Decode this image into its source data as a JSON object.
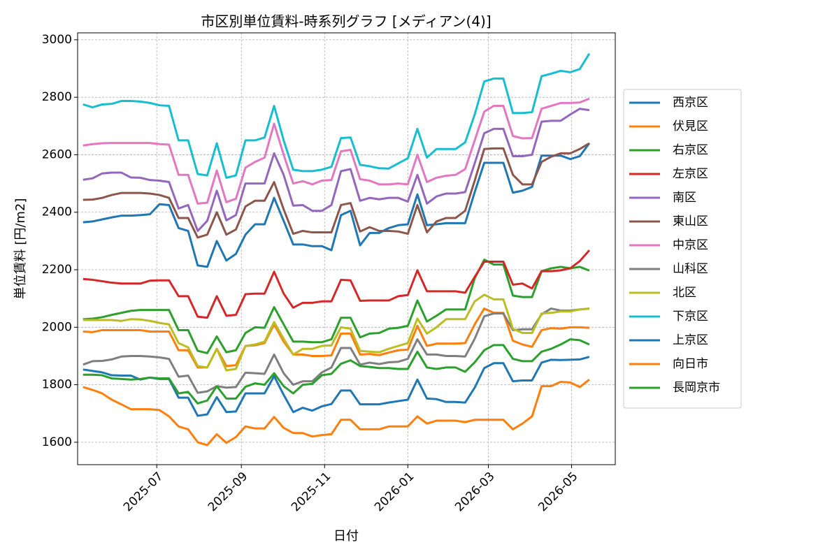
{
  "chart_data": {
    "type": "line",
    "title": "市区別単位賃料-時系列グラフ [メディアン(4)]",
    "x_label": "日付",
    "y_label": "単位賃料 [円/m2]",
    "x": [
      20216,
      20223,
      20230,
      20237,
      20244,
      20251,
      20258,
      20265,
      20272,
      20279,
      20286,
      20293,
      20300,
      20307,
      20314,
      20321,
      20328,
      20335,
      20342,
      20349,
      20356,
      20363,
      20370,
      20377,
      20384,
      20391,
      20398,
      20405,
      20412,
      20419,
      20426,
      20433,
      20440,
      20447,
      20454,
      20461,
      20468,
      20475,
      20482,
      20489,
      20496,
      20503,
      20510,
      20517,
      20524,
      20531,
      20538,
      20545,
      20552,
      20559,
      20566,
      20573,
      20580,
      20587
    ],
    "xlim": [
      20212,
      20606
    ],
    "xticks": [
      {
        "value": 20270,
        "label": "2025-07"
      },
      {
        "value": 20332,
        "label": "2025-09"
      },
      {
        "value": 20393,
        "label": "2025-11"
      },
      {
        "value": 20454,
        "label": "2026-01"
      },
      {
        "value": 20513,
        "label": "2026-03"
      },
      {
        "value": 20574,
        "label": "2026-05"
      }
    ],
    "ylim": [
      1522,
      3024
    ],
    "yticks": [
      1600,
      1800,
      2000,
      2200,
      2400,
      2600,
      2800,
      3000
    ],
    "grid": true,
    "legend": "right",
    "series": [
      {
        "name": "西京区",
        "color": "#1f77b4",
        "values": [
          2365,
          2368,
          2375,
          2382,
          2388,
          2388,
          2390,
          2393,
          2428,
          2425,
          2345,
          2335,
          2215,
          2210,
          2300,
          2232,
          2255,
          2322,
          2358,
          2358,
          2450,
          2370,
          2288,
          2288,
          2282,
          2282,
          2268,
          2390,
          2405,
          2285,
          2328,
          2328,
          2345,
          2355,
          2358,
          2462,
          2355,
          2358,
          2362,
          2362,
          2362,
          2470,
          2572,
          2572,
          2572,
          2468,
          2475,
          2488,
          2597,
          2597,
          2597,
          2585,
          2595,
          2640
        ]
      },
      {
        "name": "伏見区",
        "color": "#ff7f0e",
        "values": [
          1985,
          1983,
          1990,
          1990,
          1990,
          1990,
          1990,
          1985,
          1985,
          1985,
          1920,
          1920,
          1860,
          1860,
          1925,
          1865,
          1868,
          1935,
          1937,
          1945,
          2010,
          1950,
          1905,
          1905,
          1900,
          1900,
          1902,
          1978,
          1978,
          1905,
          1907,
          1903,
          1912,
          1920,
          1922,
          2005,
          1935,
          1943,
          1943,
          1943,
          1945,
          2010,
          2065,
          2050,
          2050,
          1953,
          1940,
          1932,
          1990,
          1997,
          1995,
          2000,
          2000,
          1998
        ]
      },
      {
        "name": "右京区",
        "color": "#2ca02c",
        "values": [
          2028,
          2030,
          2035,
          2043,
          2050,
          2057,
          2060,
          2060,
          2060,
          2060,
          1990,
          1990,
          1918,
          1910,
          1968,
          1913,
          1920,
          1980,
          2000,
          1998,
          2070,
          2010,
          1950,
          1950,
          1948,
          1948,
          1958,
          2033,
          2033,
          1965,
          1978,
          1980,
          1995,
          1998,
          2005,
          2093,
          2020,
          2040,
          2062,
          2062,
          2062,
          2170,
          2235,
          2218,
          2218,
          2110,
          2105,
          2105,
          2195,
          2205,
          2210,
          2205,
          2210,
          2197
        ]
      },
      {
        "name": "左京区",
        "color": "#d62728",
        "values": [
          2168,
          2165,
          2160,
          2155,
          2152,
          2152,
          2152,
          2162,
          2163,
          2163,
          2108,
          2108,
          2037,
          2033,
          2108,
          2040,
          2043,
          2115,
          2117,
          2117,
          2193,
          2117,
          2068,
          2085,
          2085,
          2090,
          2090,
          2165,
          2163,
          2092,
          2093,
          2093,
          2093,
          2108,
          2112,
          2198,
          2125,
          2125,
          2125,
          2125,
          2120,
          2175,
          2228,
          2228,
          2228,
          2148,
          2152,
          2135,
          2195,
          2195,
          2198,
          2205,
          2230,
          2268
        ]
      },
      {
        "name": "南区",
        "color": "#9467bd",
        "values": [
          2513,
          2518,
          2535,
          2538,
          2538,
          2521,
          2520,
          2512,
          2510,
          2505,
          2413,
          2425,
          2335,
          2370,
          2475,
          2372,
          2390,
          2500,
          2500,
          2500,
          2605,
          2530,
          2423,
          2425,
          2405,
          2405,
          2425,
          2543,
          2550,
          2440,
          2450,
          2445,
          2450,
          2450,
          2437,
          2530,
          2430,
          2455,
          2465,
          2465,
          2470,
          2570,
          2675,
          2690,
          2690,
          2595,
          2595,
          2600,
          2715,
          2718,
          2718,
          2740,
          2760,
          2755
        ]
      },
      {
        "name": "東山区",
        "color": "#8c564b",
        "values": [
          2443,
          2444,
          2450,
          2460,
          2467,
          2467,
          2467,
          2465,
          2460,
          2450,
          2380,
          2380,
          2312,
          2322,
          2400,
          2322,
          2340,
          2420,
          2440,
          2440,
          2505,
          2410,
          2325,
          2335,
          2330,
          2330,
          2330,
          2425,
          2432,
          2333,
          2348,
          2335,
          2335,
          2333,
          2325,
          2425,
          2330,
          2368,
          2380,
          2380,
          2405,
          2510,
          2620,
          2622,
          2622,
          2530,
          2497,
          2497,
          2575,
          2593,
          2605,
          2605,
          2620,
          2640
        ]
      },
      {
        "name": "中京区",
        "color": "#e377c2",
        "values": [
          2632,
          2637,
          2640,
          2641,
          2641,
          2641,
          2641,
          2641,
          2637,
          2635,
          2530,
          2530,
          2430,
          2433,
          2545,
          2435,
          2447,
          2555,
          2575,
          2590,
          2708,
          2600,
          2500,
          2508,
          2497,
          2510,
          2512,
          2612,
          2617,
          2515,
          2510,
          2497,
          2497,
          2500,
          2497,
          2600,
          2505,
          2520,
          2527,
          2530,
          2550,
          2650,
          2750,
          2770,
          2770,
          2665,
          2657,
          2658,
          2760,
          2770,
          2780,
          2780,
          2782,
          2795
        ]
      },
      {
        "name": "山科区",
        "color": "#7f7f7f",
        "values": [
          1870,
          1882,
          1883,
          1888,
          1898,
          1900,
          1900,
          1898,
          1895,
          1890,
          1828,
          1832,
          1772,
          1777,
          1795,
          1790,
          1792,
          1842,
          1840,
          1838,
          1905,
          1840,
          1800,
          1812,
          1812,
          1843,
          1860,
          1928,
          1928,
          1870,
          1877,
          1872,
          1878,
          1880,
          1890,
          1958,
          1905,
          1905,
          1900,
          1900,
          1898,
          1960,
          2038,
          2048,
          2048,
          1990,
          1993,
          1993,
          2045,
          2065,
          2058,
          2058,
          2062,
          2065
        ]
      },
      {
        "name": "北区",
        "color": "#bcbd22",
        "values": [
          2025,
          2025,
          2025,
          2025,
          2022,
          2028,
          2027,
          2022,
          2015,
          2010,
          1945,
          1930,
          1865,
          1860,
          1925,
          1850,
          1855,
          1935,
          1940,
          1950,
          2018,
          1960,
          1905,
          1925,
          1925,
          1935,
          1937,
          2000,
          1995,
          1918,
          1915,
          1913,
          1925,
          1935,
          1945,
          2030,
          1978,
          2000,
          2028,
          2028,
          2028,
          2090,
          2113,
          2097,
          2097,
          1995,
          1980,
          1980,
          2048,
          2050,
          2055,
          2055,
          2062,
          2065
        ]
      },
      {
        "name": "下京区",
        "color": "#17becf",
        "values": [
          2775,
          2765,
          2775,
          2777,
          2787,
          2787,
          2785,
          2780,
          2772,
          2770,
          2650,
          2650,
          2533,
          2528,
          2640,
          2520,
          2528,
          2650,
          2650,
          2660,
          2770,
          2650,
          2548,
          2543,
          2543,
          2548,
          2558,
          2658,
          2660,
          2565,
          2560,
          2553,
          2552,
          2570,
          2588,
          2690,
          2590,
          2620,
          2620,
          2620,
          2643,
          2740,
          2855,
          2865,
          2865,
          2745,
          2745,
          2748,
          2873,
          2882,
          2892,
          2887,
          2898,
          2952
        ]
      },
      {
        "name": "上京区",
        "color": "#1f77b4",
        "values": [
          1853,
          1848,
          1843,
          1833,
          1832,
          1832,
          1818,
          1825,
          1820,
          1820,
          1755,
          1755,
          1692,
          1697,
          1757,
          1705,
          1707,
          1770,
          1770,
          1770,
          1830,
          1765,
          1705,
          1720,
          1710,
          1725,
          1733,
          1780,
          1780,
          1732,
          1732,
          1732,
          1738,
          1743,
          1748,
          1818,
          1752,
          1750,
          1740,
          1740,
          1738,
          1790,
          1858,
          1875,
          1875,
          1812,
          1815,
          1815,
          1877,
          1887,
          1886,
          1887,
          1888,
          1897
        ]
      },
      {
        "name": "向日市",
        "color": "#ff7f0e",
        "values": [
          1792,
          1782,
          1770,
          1748,
          1732,
          1715,
          1715,
          1715,
          1712,
          1690,
          1655,
          1645,
          1600,
          1590,
          1628,
          1598,
          1618,
          1655,
          1648,
          1648,
          1688,
          1650,
          1632,
          1632,
          1620,
          1625,
          1628,
          1678,
          1678,
          1645,
          1645,
          1645,
          1655,
          1655,
          1655,
          1690,
          1665,
          1675,
          1675,
          1675,
          1670,
          1678,
          1678,
          1678,
          1678,
          1645,
          1665,
          1690,
          1795,
          1795,
          1810,
          1808,
          1792,
          1818
        ]
      },
      {
        "name": "長岡京市",
        "color": "#2ca02c",
        "values": [
          1835,
          1835,
          1833,
          1822,
          1820,
          1818,
          1820,
          1825,
          1822,
          1822,
          1770,
          1775,
          1735,
          1745,
          1795,
          1752,
          1752,
          1793,
          1805,
          1800,
          1840,
          1795,
          1770,
          1800,
          1803,
          1833,
          1838,
          1873,
          1885,
          1865,
          1862,
          1858,
          1858,
          1855,
          1855,
          1915,
          1860,
          1855,
          1860,
          1860,
          1845,
          1878,
          1920,
          1938,
          1938,
          1890,
          1882,
          1882,
          1915,
          1925,
          1940,
          1958,
          1955,
          1940
        ]
      }
    ]
  }
}
